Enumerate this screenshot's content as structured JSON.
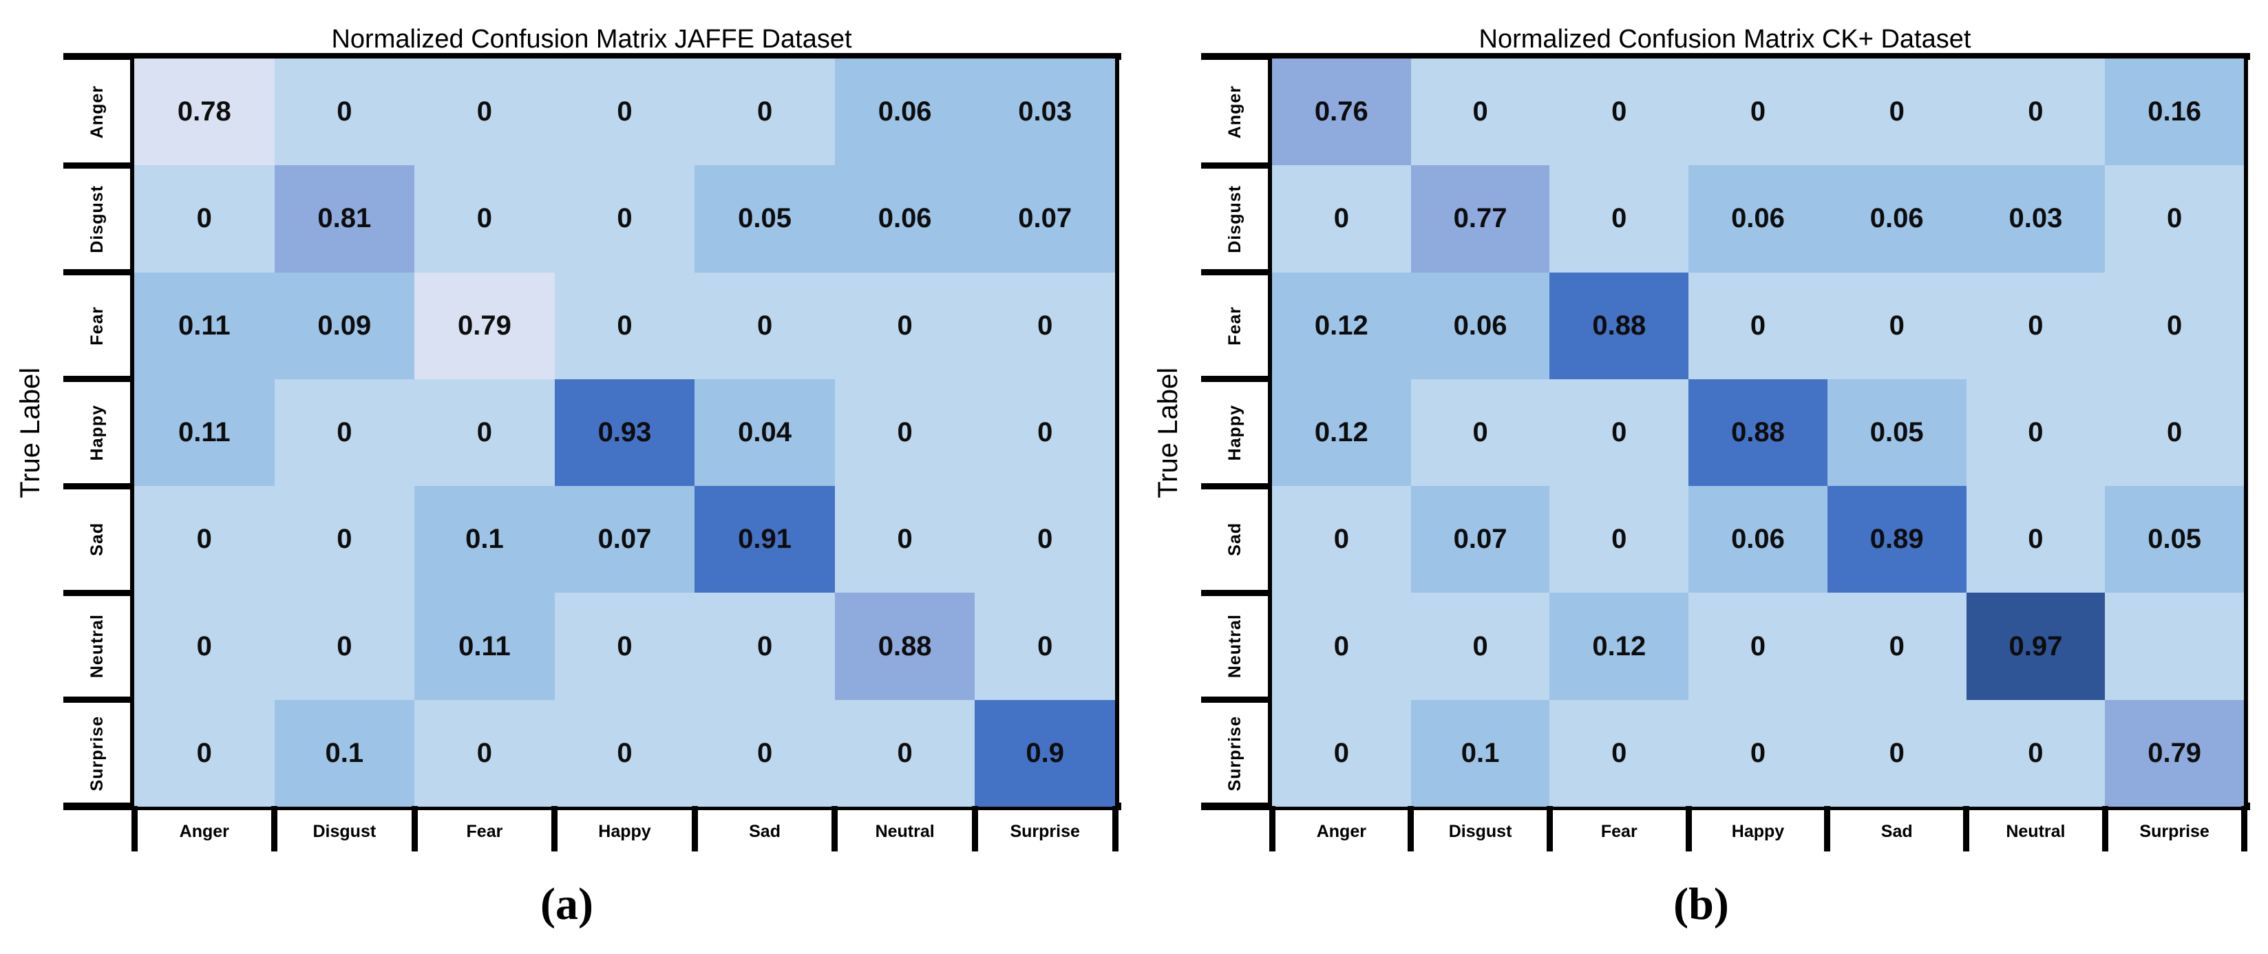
{
  "figure": {
    "background": "#ffffff",
    "line_color": "#000000"
  },
  "palette": {
    "zero": "#BDD7EE",
    "low": "#9DC3E6",
    "mid": "#8FAADC",
    "high": "#4472C4",
    "peak": "#2F5597",
    "pale": "#D9E1F2"
  },
  "panels": [
    {
      "title": "Normalized Confusion Matrix JAFFE Dataset",
      "caption": "(a)",
      "y_axis_label": "True Label",
      "row_labels": [
        "Anger",
        "Disgust",
        "Fear",
        "Happy",
        "Sad",
        "Neutral",
        "Surprise"
      ],
      "col_labels": [
        "Anger",
        "Disgust",
        "Fear",
        "Happy",
        "Sad",
        "Neutral",
        "Surprise"
      ],
      "cells": [
        [
          {
            "v": "0.78",
            "c": "pale"
          },
          {
            "v": "0",
            "c": "zero"
          },
          {
            "v": "0",
            "c": "zero"
          },
          {
            "v": "0",
            "c": "zero"
          },
          {
            "v": "0",
            "c": "zero"
          },
          {
            "v": "0.06",
            "c": "low"
          },
          {
            "v": "0.03",
            "c": "low"
          }
        ],
        [
          {
            "v": "0",
            "c": "zero"
          },
          {
            "v": "0.81",
            "c": "mid"
          },
          {
            "v": "0",
            "c": "zero"
          },
          {
            "v": "0",
            "c": "zero"
          },
          {
            "v": "0.05",
            "c": "low"
          },
          {
            "v": "0.06",
            "c": "low"
          },
          {
            "v": "0.07",
            "c": "low"
          }
        ],
        [
          {
            "v": "0.11",
            "c": "low"
          },
          {
            "v": "0.09",
            "c": "low"
          },
          {
            "v": "0.79",
            "c": "pale"
          },
          {
            "v": "0",
            "c": "zero"
          },
          {
            "v": "0",
            "c": "zero"
          },
          {
            "v": "0",
            "c": "zero"
          },
          {
            "v": "0",
            "c": "zero"
          }
        ],
        [
          {
            "v": "0.11",
            "c": "low"
          },
          {
            "v": "0",
            "c": "zero"
          },
          {
            "v": "0",
            "c": "zero"
          },
          {
            "v": "0.93",
            "c": "high"
          },
          {
            "v": "0.04",
            "c": "low"
          },
          {
            "v": "0",
            "c": "zero"
          },
          {
            "v": "0",
            "c": "zero"
          }
        ],
        [
          {
            "v": "0",
            "c": "zero"
          },
          {
            "v": "0",
            "c": "zero"
          },
          {
            "v": "0.1",
            "c": "low"
          },
          {
            "v": "0.07",
            "c": "low"
          },
          {
            "v": "0.91",
            "c": "high"
          },
          {
            "v": "0",
            "c": "zero"
          },
          {
            "v": "0",
            "c": "zero"
          }
        ],
        [
          {
            "v": "0",
            "c": "zero"
          },
          {
            "v": "0",
            "c": "zero"
          },
          {
            "v": "0.11",
            "c": "low"
          },
          {
            "v": "0",
            "c": "zero"
          },
          {
            "v": "0",
            "c": "zero"
          },
          {
            "v": "0.88",
            "c": "mid"
          },
          {
            "v": "0",
            "c": "zero"
          }
        ],
        [
          {
            "v": "0",
            "c": "zero"
          },
          {
            "v": "0.1",
            "c": "low"
          },
          {
            "v": "0",
            "c": "zero"
          },
          {
            "v": "0",
            "c": "zero"
          },
          {
            "v": "0",
            "c": "zero"
          },
          {
            "v": "0",
            "c": "zero"
          },
          {
            "v": "0.9",
            "c": "high"
          }
        ]
      ]
    },
    {
      "title": "Normalized Confusion Matrix CK+ Dataset",
      "caption": "(b)",
      "y_axis_label": "True Label",
      "row_labels": [
        "Anger",
        "Disgust",
        "Fear",
        "Happy",
        "Sad",
        "Neutral",
        "Surprise"
      ],
      "col_labels": [
        "Anger",
        "Disgust",
        "Fear",
        "Happy",
        "Sad",
        "Neutral",
        "Surprise"
      ],
      "cells": [
        [
          {
            "v": "0.76",
            "c": "mid"
          },
          {
            "v": "0",
            "c": "zero"
          },
          {
            "v": "0",
            "c": "zero"
          },
          {
            "v": "0",
            "c": "zero"
          },
          {
            "v": "0",
            "c": "zero"
          },
          {
            "v": "0",
            "c": "zero"
          },
          {
            "v": "0.16",
            "c": "low"
          }
        ],
        [
          {
            "v": "0",
            "c": "zero"
          },
          {
            "v": "0.77",
            "c": "mid"
          },
          {
            "v": "0",
            "c": "zero"
          },
          {
            "v": "0.06",
            "c": "low"
          },
          {
            "v": "0.06",
            "c": "low"
          },
          {
            "v": "0.03",
            "c": "low"
          },
          {
            "v": "0",
            "c": "zero"
          }
        ],
        [
          {
            "v": "0.12",
            "c": "low"
          },
          {
            "v": "0.06",
            "c": "low"
          },
          {
            "v": "0.88",
            "c": "high"
          },
          {
            "v": "0",
            "c": "zero"
          },
          {
            "v": "0",
            "c": "zero"
          },
          {
            "v": "0",
            "c": "zero"
          },
          {
            "v": "0",
            "c": "zero"
          }
        ],
        [
          {
            "v": "0.12",
            "c": "low"
          },
          {
            "v": "0",
            "c": "zero"
          },
          {
            "v": "0",
            "c": "zero"
          },
          {
            "v": "0.88",
            "c": "high"
          },
          {
            "v": "0.05",
            "c": "low"
          },
          {
            "v": "0",
            "c": "zero"
          },
          {
            "v": "0",
            "c": "zero"
          }
        ],
        [
          {
            "v": "0",
            "c": "zero"
          },
          {
            "v": "0.07",
            "c": "low"
          },
          {
            "v": "0",
            "c": "zero"
          },
          {
            "v": "0.06",
            "c": "low"
          },
          {
            "v": "0.89",
            "c": "high"
          },
          {
            "v": "0",
            "c": "zero"
          },
          {
            "v": "0.05",
            "c": "low"
          }
        ],
        [
          {
            "v": "0",
            "c": "zero"
          },
          {
            "v": "0",
            "c": "zero"
          },
          {
            "v": "0.12",
            "c": "low"
          },
          {
            "v": "0",
            "c": "zero"
          },
          {
            "v": "0",
            "c": "zero"
          },
          {
            "v": "0.97",
            "c": "peak"
          },
          {
            "v": "",
            "c": "zero"
          }
        ],
        [
          {
            "v": "0",
            "c": "zero"
          },
          {
            "v": "0.1",
            "c": "low"
          },
          {
            "v": "0",
            "c": "zero"
          },
          {
            "v": "0",
            "c": "zero"
          },
          {
            "v": "0",
            "c": "zero"
          },
          {
            "v": "0",
            "c": "zero"
          },
          {
            "v": "0.79",
            "c": "mid"
          }
        ]
      ]
    }
  ],
  "chart_data": [
    {
      "type": "heatmap",
      "title": "Normalized Confusion Matrix JAFFE Dataset",
      "caption": "(a)",
      "ylabel": "True Label",
      "x_labels": [
        "Anger",
        "Disgust",
        "Fear",
        "Happy",
        "Sad",
        "Neutral",
        "Surprise"
      ],
      "y_labels": [
        "Anger",
        "Disgust",
        "Fear",
        "Happy",
        "Sad",
        "Neutral",
        "Surprise"
      ],
      "values": [
        [
          0.78,
          0,
          0,
          0,
          0,
          0.06,
          0.03
        ],
        [
          0,
          0.81,
          0,
          0,
          0.05,
          0.06,
          0.07
        ],
        [
          0.11,
          0.09,
          0.79,
          0,
          0,
          0,
          0
        ],
        [
          0.11,
          0,
          0,
          0.93,
          0.04,
          0,
          0
        ],
        [
          0,
          0,
          0.1,
          0.07,
          0.91,
          0,
          0
        ],
        [
          0,
          0,
          0.11,
          0,
          0,
          0.88,
          0
        ],
        [
          0,
          0.1,
          0,
          0,
          0,
          0,
          0.9
        ]
      ],
      "colormap": "blues",
      "grid": false,
      "legend": "none"
    },
    {
      "type": "heatmap",
      "title": "Normalized Confusion Matrix CK+ Dataset",
      "caption": "(b)",
      "ylabel": "True Label",
      "x_labels": [
        "Anger",
        "Disgust",
        "Fear",
        "Happy",
        "Sad",
        "Neutral",
        "Surprise"
      ],
      "y_labels": [
        "Anger",
        "Disgust",
        "Fear",
        "Happy",
        "Sad",
        "Neutral",
        "Surprise"
      ],
      "values": [
        [
          0.76,
          0,
          0,
          0,
          0,
          0,
          0.16
        ],
        [
          0,
          0.77,
          0,
          0.06,
          0.06,
          0.03,
          0
        ],
        [
          0.12,
          0.06,
          0.88,
          0,
          0,
          0,
          0
        ],
        [
          0.12,
          0,
          0,
          0.88,
          0.05,
          0,
          0
        ],
        [
          0,
          0.07,
          0,
          0.06,
          0.89,
          0,
          0.05
        ],
        [
          0,
          0,
          0.12,
          0,
          0,
          0.97,
          null
        ],
        [
          0,
          0.1,
          0,
          0,
          0,
          0,
          0.79
        ]
      ],
      "colormap": "blues",
      "grid": false,
      "legend": "none"
    }
  ]
}
